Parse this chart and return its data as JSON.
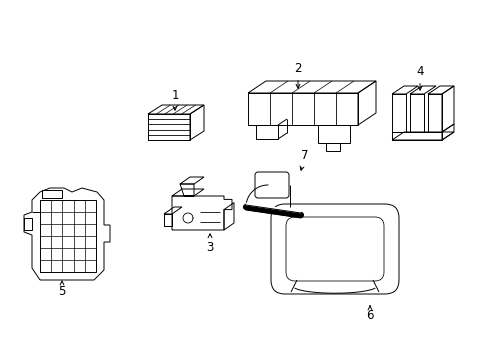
{
  "background_color": "#ffffff",
  "line_color": "#000000",
  "line_width": 0.7,
  "figure_width": 4.89,
  "figure_height": 3.6,
  "dpi": 100
}
